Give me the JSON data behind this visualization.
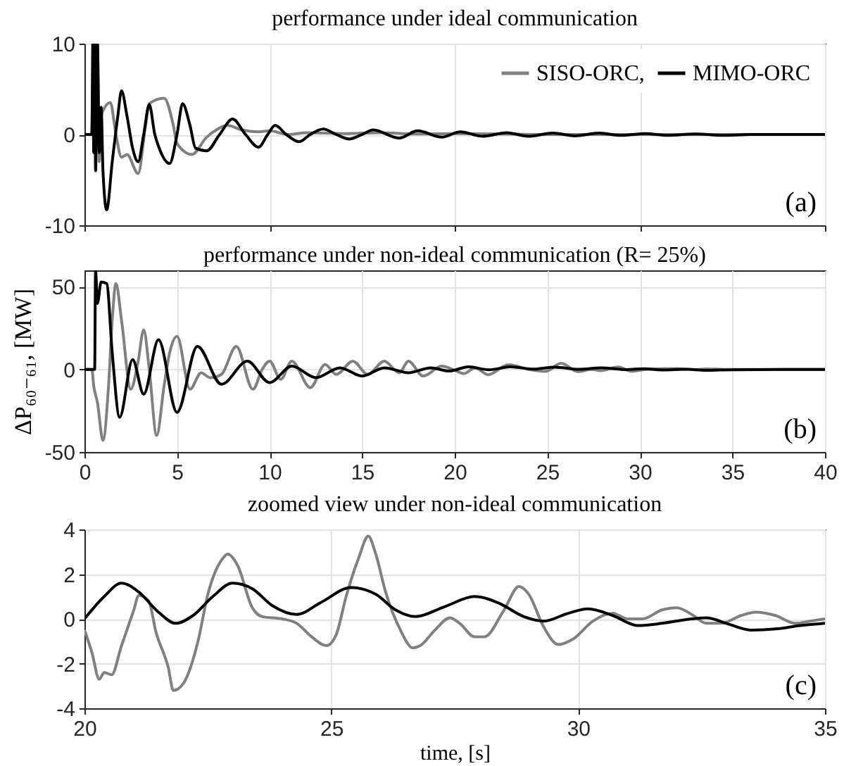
{
  "chart_data": [
    {
      "type": "line",
      "title": "performance under ideal communication",
      "xlim": [
        0,
        40
      ],
      "xticks": [
        0,
        10,
        20,
        30,
        40
      ],
      "ylim": [
        -10,
        10
      ],
      "yticks": [
        -10,
        0,
        10
      ],
      "grid": true,
      "legend": "top right",
      "tick_labels": "y",
      "annotations": [
        "(a)"
      ],
      "series": [
        {
          "name": "SISO-ORC,",
          "color": "#808080",
          "x": [
            0,
            0.38,
            0.5,
            0.6,
            0.7,
            0.8,
            0.9,
            1.1,
            1.4,
            1.7,
            2.0,
            2.3,
            2.9,
            3.3,
            3.5,
            4.3,
            4.8,
            5.0,
            5.8,
            6.6,
            7.2,
            7.7,
            8.5,
            9.4,
            10,
            11,
            12,
            14,
            16,
            18,
            20,
            25,
            40
          ],
          "values": [
            0,
            0,
            10,
            -2,
            10,
            -3,
            2,
            3,
            3.5,
            0,
            -2.5,
            -2.2,
            -4.3,
            1,
            3.4,
            4,
            1,
            -1,
            -2.2,
            -0.3,
            0.6,
            1,
            0.5,
            0.3,
            0.4,
            0,
            0.2,
            0.1,
            0.2,
            0.05,
            0.1,
            0,
            0
          ]
        },
        {
          "name": "MIMO-ORC",
          "color": "#000000",
          "x": [
            0,
            0.4,
            0.45,
            0.5,
            0.55,
            0.6,
            0.7,
            0.8,
            0.9,
            1.0,
            1.2,
            1.5,
            1.8,
            2.0,
            2.3,
            2.6,
            2.9,
            3.2,
            3.5,
            3.8,
            4.0,
            4.6,
            5.0,
            5.3,
            5.7,
            6.0,
            6.6,
            7.3,
            8.0,
            8.7,
            9.4,
            9.9,
            10.3,
            10.9,
            11.6,
            12.2,
            12.9,
            13.6,
            14.3,
            15.0,
            15.6,
            17,
            18,
            19.3,
            20.3,
            21.5,
            22.8,
            24,
            25.3,
            26.5,
            27.8,
            29,
            30.3,
            31.5,
            33,
            34.5,
            36,
            40
          ],
          "values": [
            0,
            0,
            10,
            -2,
            10,
            -4,
            10,
            -2,
            3,
            -4,
            -8.3,
            -3,
            2,
            4.8,
            2,
            -1.5,
            -3,
            0,
            3.3,
            0,
            -1.3,
            -3.2,
            0,
            3.4,
            1,
            -1.5,
            -1.8,
            0,
            1.7,
            0,
            -1.4,
            0,
            1,
            0,
            -0.8,
            0,
            0.6,
            0,
            -0.5,
            0,
            0.5,
            -0.4,
            0.4,
            -0.3,
            0.3,
            -0.2,
            0.2,
            -0.2,
            0.15,
            -0.15,
            0.15,
            -0.1,
            0.1,
            -0.1,
            0.05,
            -0.1,
            0,
            0
          ]
        }
      ]
    },
    {
      "type": "line",
      "title": "performance under non-ideal communication (R= 25%)",
      "ylabel": "ΔP₆₀₋₆₁, [MW]",
      "xlim": [
        0,
        40
      ],
      "xticks": [
        0,
        5,
        10,
        15,
        20,
        25,
        30,
        35,
        40
      ],
      "ylim": [
        -50,
        60
      ],
      "yticks": [
        -50,
        0,
        50
      ],
      "grid": true,
      "legend": "top right",
      "annotations": [
        "(b)"
      ],
      "series": [
        {
          "name": "SISO-ORC,",
          "color": "#808080",
          "x": [
            0,
            0.4,
            0.5,
            0.7,
            1.0,
            1.3,
            1.5,
            1.7,
            2.0,
            2.5,
            2.9,
            3.2,
            3.5,
            3.9,
            4.3,
            4.6,
            5.0,
            5.7,
            6.3,
            6.8,
            7.4,
            8.2,
            9.1,
            9.6,
            10.0,
            10.6,
            11.2,
            12.2,
            13.0,
            13.6,
            14.5,
            15.3,
            16.2,
            17.0,
            17.5,
            18.3,
            19.3,
            20,
            20.5,
            21.1,
            21.8,
            22.9,
            24,
            24.9,
            25.75,
            26.65,
            27.4,
            27.9,
            28.8,
            29.6,
            30.3,
            32,
            33,
            33.6,
            35,
            40
          ],
          "values": [
            0,
            0,
            -10,
            -20,
            -43,
            -10,
            30,
            52,
            30,
            -12,
            5,
            24,
            0,
            -40,
            -10,
            10,
            20,
            -12,
            -2,
            -5,
            -3,
            14,
            -12,
            0,
            5,
            -6,
            5,
            -11,
            3,
            -3,
            5,
            -3,
            5,
            -2,
            5,
            -4,
            2,
            -0.5,
            -2.5,
            1,
            -3.2,
            2.9,
            0,
            -1.2,
            3.7,
            -1.3,
            0,
            -0.8,
            1.45,
            -1.15,
            0,
            0.5,
            -0.2,
            0.3,
            0,
            0
          ]
        },
        {
          "name": "MIMO-ORC",
          "color": "#000000",
          "x": [
            0,
            0.55,
            0.6,
            0.7,
            0.9,
            1.2,
            1.5,
            1.9,
            2.6,
            3.2,
            4.0,
            5.0,
            6.1,
            7.4,
            8.8,
            10.0,
            11.2,
            12.5,
            13.8,
            15,
            16.2,
            17.5,
            18.7,
            19.7,
            20.75,
            21.85,
            23,
            24.3,
            25.4,
            26.7,
            27.9,
            29.3,
            30.2,
            31.2,
            32.6,
            33.5,
            35,
            40
          ],
          "values": [
            0,
            0,
            60,
            40,
            53,
            52,
            10,
            -29,
            6,
            -15,
            18,
            -26,
            14,
            -9,
            5,
            -8,
            2,
            -5,
            1,
            -4,
            1,
            -2,
            1,
            -1,
            1.6,
            -0.2,
            1.6,
            0.2,
            1.4,
            0.1,
            1,
            -0.1,
            0.45,
            -0.3,
            0.05,
            -0.5,
            -0.2,
            0
          ]
        }
      ]
    },
    {
      "type": "line",
      "title": "zoomed view under non-ideal communication",
      "xlabel": "time, [s]",
      "xlim": [
        20,
        35
      ],
      "xticks": [
        20,
        25,
        30,
        35
      ],
      "ylim": [
        -4,
        4
      ],
      "yticks": [
        -4,
        -2,
        0,
        2,
        4
      ],
      "grid": true,
      "legend": "top right",
      "annotations": [
        "(c)"
      ],
      "series": [
        {
          "name": "SISO-ORC,",
          "color": "#808080",
          "x": [
            20.0,
            20.15,
            20.3,
            20.4,
            20.55,
            20.75,
            21.0,
            21.1,
            21.3,
            21.45,
            21.7,
            21.8,
            22.0,
            22.3,
            22.5,
            22.8,
            22.9,
            23.1,
            23.4,
            23.6,
            24.0,
            24.3,
            24.6,
            24.9,
            25.1,
            25.3,
            25.55,
            25.75,
            25.9,
            26.1,
            26.4,
            26.65,
            26.8,
            27.1,
            27.4,
            27.6,
            27.9,
            28.1,
            28.5,
            28.8,
            29.0,
            29.3,
            29.6,
            29.9,
            30.3,
            30.7,
            31.0,
            31.3,
            31.7,
            32.0,
            32.3,
            32.6,
            32.9,
            33.3,
            33.6,
            34.0,
            34.4,
            34.7,
            35
          ],
          "values": [
            -0.5,
            -1.5,
            -2.7,
            -2.4,
            -2.5,
            -1.2,
            0.4,
            1.05,
            0.8,
            -0.6,
            -2.2,
            -3.2,
            -2.9,
            -1,
            1.1,
            2.7,
            2.9,
            2.4,
            0.5,
            0.1,
            0,
            -0.2,
            -0.8,
            -1.2,
            -0.7,
            1,
            2.7,
            3.7,
            2.9,
            1.2,
            -0.5,
            -1.3,
            -1.2,
            -0.5,
            0.05,
            -0.2,
            -0.8,
            -0.8,
            0.4,
            1.45,
            1.1,
            -0.35,
            -1.15,
            -0.9,
            -0.1,
            0.25,
            0,
            0,
            0.4,
            0.5,
            0.2,
            -0.2,
            -0.2,
            0.15,
            0.3,
            0.15,
            -0.2,
            -0.1,
            0
          ]
        },
        {
          "name": "MIMO-ORC",
          "color": "#000000",
          "x": [
            20.0,
            20.4,
            20.75,
            21.1,
            21.5,
            21.85,
            22.2,
            22.6,
            23.0,
            23.4,
            23.8,
            24.3,
            24.8,
            25.4,
            25.9,
            26.3,
            26.7,
            27.3,
            27.9,
            28.4,
            28.9,
            29.3,
            29.8,
            30.2,
            30.7,
            31.2,
            31.7,
            32.3,
            32.6,
            33.0,
            33.5,
            34.0,
            34.5,
            35
          ],
          "values": [
            0,
            1,
            1.6,
            1.2,
            0.3,
            -0.2,
            0.15,
            1,
            1.6,
            1.35,
            0.6,
            0.2,
            0.75,
            1.4,
            1.1,
            0.4,
            0.1,
            0.55,
            1,
            0.7,
            0.1,
            -0.1,
            0.25,
            0.45,
            0.15,
            -0.3,
            -0.2,
            0,
            0.05,
            -0.2,
            -0.5,
            -0.45,
            -0.3,
            -0.2
          ]
        }
      ]
    }
  ]
}
